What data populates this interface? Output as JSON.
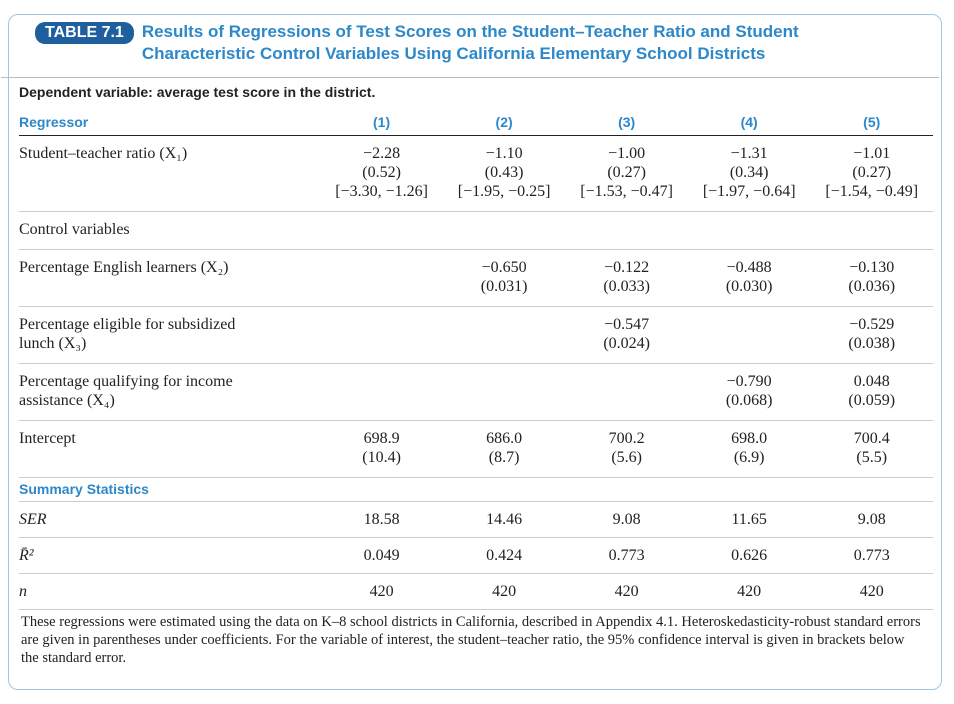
{
  "header": {
    "badge": "TABLE 7.1",
    "title": "Results of Regressions of Test Scores on the Student–Teacher Ratio and Student Characteristic Control Variables Using California Elementary School Districts"
  },
  "table": {
    "dependent": "Dependent variable: average test score in the district.",
    "columns": [
      "Regressor",
      "(1)",
      "(2)",
      "(3)",
      "(4)",
      "(5)"
    ],
    "rows": [
      {
        "label": [
          "Student–teacher ratio (X₁)"
        ],
        "cells": [
          [
            "−2.28",
            "(0.52)",
            "[−3.30, −1.26]"
          ],
          [
            "−1.10",
            "(0.43)",
            "[−1.95, −0.25]"
          ],
          [
            "−1.00",
            "(0.27)",
            "[−1.53, −0.47]"
          ],
          [
            "−1.31",
            "(0.34)",
            "[−1.97, −0.64]"
          ],
          [
            "−1.01",
            "(0.27)",
            "[−1.54, −0.49]"
          ]
        ]
      },
      {
        "label": [
          "Control variables"
        ]
      },
      {
        "label": [
          "Percentage English learners (X₂)"
        ],
        "cells": [
          null,
          [
            "−0.650",
            "(0.031)"
          ],
          [
            "−0.122",
            "(0.033)"
          ],
          [
            "−0.488",
            "(0.030)"
          ],
          [
            "−0.130",
            "(0.036)"
          ]
        ]
      },
      {
        "label": [
          "Percentage eligible for subsidized",
          "lunch (X₃)"
        ],
        "cells": [
          null,
          null,
          [
            "−0.547",
            "(0.024)"
          ],
          null,
          [
            "−0.529",
            "(0.038)"
          ]
        ]
      },
      {
        "label": [
          "Percentage qualifying for income",
          "assistance (X₄)"
        ],
        "cells": [
          null,
          null,
          null,
          [
            "−0.790",
            "(0.068)"
          ],
          [
            "0.048",
            "(0.059)"
          ]
        ]
      },
      {
        "label": [
          "Intercept"
        ],
        "cells": [
          [
            "698.9",
            "(10.4)"
          ],
          [
            "686.0",
            "(8.7)"
          ],
          [
            "700.2",
            "(5.6)"
          ],
          [
            "698.0",
            "(6.9)"
          ],
          [
            "700.4",
            "(5.5)"
          ]
        ]
      }
    ],
    "summary_heading": "Summary Statistics",
    "summary_rows": [
      {
        "label": [
          "SER"
        ],
        "cells": [
          [
            "18.58"
          ],
          [
            "14.46"
          ],
          [
            "9.08"
          ],
          [
            "11.65"
          ],
          [
            "9.08"
          ]
        ]
      },
      {
        "label": [
          "R̄²"
        ],
        "cells": [
          [
            "0.049"
          ],
          [
            "0.424"
          ],
          [
            "0.773"
          ],
          [
            "0.626"
          ],
          [
            "0.773"
          ]
        ]
      },
      {
        "label": [
          "n"
        ],
        "cells": [
          [
            "420"
          ],
          [
            "420"
          ],
          [
            "420"
          ],
          [
            "420"
          ],
          [
            "420"
          ]
        ]
      }
    ]
  },
  "footnote": "These regressions were estimated using the data on K–8 school districts in California, described in Appendix 4.1. Heteroskedasticity-robust standard errors are given in parentheses under coefficients. For the variable of interest, the student–teacher ratio, the 95% confidence interval is given in brackets below the standard error."
}
